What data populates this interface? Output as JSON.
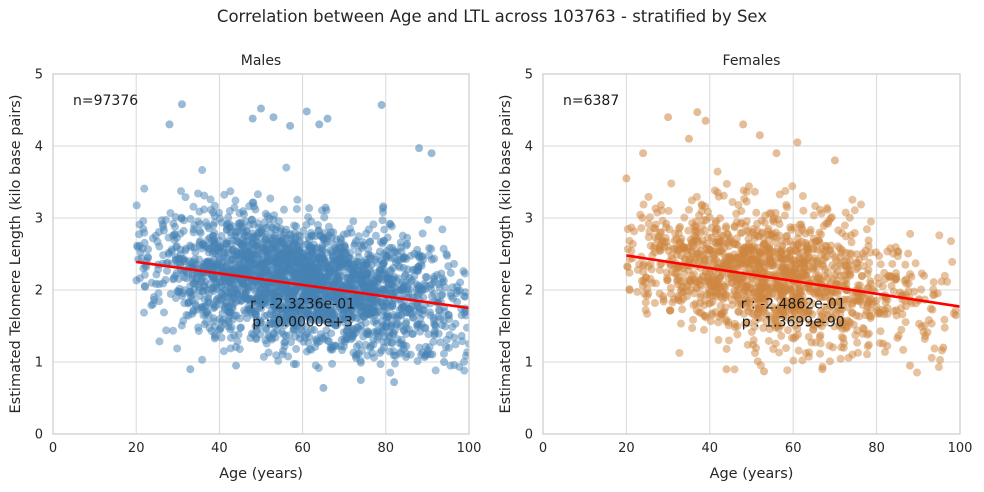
{
  "figure": {
    "title": "Correlation between Age and LTL across 103763 - stratified by Sex"
  },
  "chart_data": [
    {
      "type": "scatter",
      "title": "Males",
      "xlabel": "Age (years)",
      "ylabel": "Estimated Telomere Length (kilo base pairs)",
      "xlim": [
        0,
        100
      ],
      "ylim": [
        0,
        5
      ],
      "xticks": [
        "0",
        "20",
        "40",
        "60",
        "80",
        "100"
      ],
      "yticks": [
        "0",
        "1",
        "2",
        "3",
        "4",
        "5"
      ],
      "grid": true,
      "point_color": "#4682b4",
      "line_color": "#ff0000",
      "n_label": "n=97376",
      "r_label": "r : -2.3236e-01",
      "p_label": "p : 0.0000e+3",
      "age_range": [
        20,
        100
      ],
      "point_cloud": {
        "center_x": 60,
        "center_y": 2.2
      },
      "regression": {
        "x": [
          20,
          100
        ],
        "y": [
          2.39,
          1.75
        ]
      },
      "outliers": [
        [
          31,
          4.58
        ],
        [
          50,
          4.52
        ],
        [
          79,
          4.57
        ],
        [
          61,
          4.48
        ],
        [
          53,
          4.4
        ],
        [
          48,
          4.38
        ],
        [
          28,
          4.3
        ],
        [
          57,
          4.28
        ],
        [
          64,
          4.3
        ],
        [
          66,
          4.38
        ],
        [
          88,
          3.97
        ],
        [
          91,
          3.9
        ],
        [
          33,
          0.9
        ],
        [
          65,
          0.64
        ],
        [
          74,
          0.75
        ],
        [
          82,
          0.72
        ],
        [
          94,
          1.0
        ],
        [
          44,
          0.95
        ]
      ]
    },
    {
      "type": "scatter",
      "title": "Females",
      "xlabel": "Age (years)",
      "ylabel": "Estimated Telomere Length (kilo base pairs)",
      "xlim": [
        0,
        100
      ],
      "ylim": [
        0,
        5
      ],
      "xticks": [
        "0",
        "20",
        "40",
        "60",
        "80",
        "100"
      ],
      "yticks": [
        "0",
        "1",
        "2",
        "3",
        "4",
        "5"
      ],
      "grid": true,
      "point_color": "#cd853f",
      "line_color": "#ff0000",
      "n_label": "n=6387",
      "r_label": "r : -2.4862e-01",
      "p_label": "p : 1.3699e-90",
      "age_range": [
        20,
        100
      ],
      "point_cloud": {
        "center_x": 55,
        "center_y": 2.3
      },
      "regression": {
        "x": [
          20,
          100
        ],
        "y": [
          2.48,
          1.77
        ]
      },
      "outliers": [
        [
          37,
          4.47
        ],
        [
          39,
          4.35
        ],
        [
          30,
          4.4
        ],
        [
          48,
          4.3
        ],
        [
          52,
          4.15
        ],
        [
          61,
          4.05
        ],
        [
          35,
          4.1
        ],
        [
          56,
          3.9
        ],
        [
          70,
          3.8
        ],
        [
          24,
          3.9
        ],
        [
          20,
          3.55
        ],
        [
          44,
          0.9
        ],
        [
          53,
          0.87
        ],
        [
          67,
          0.9
        ],
        [
          88,
          0.95
        ],
        [
          99,
          1.65
        ],
        [
          96,
          1.2
        ]
      ]
    }
  ]
}
